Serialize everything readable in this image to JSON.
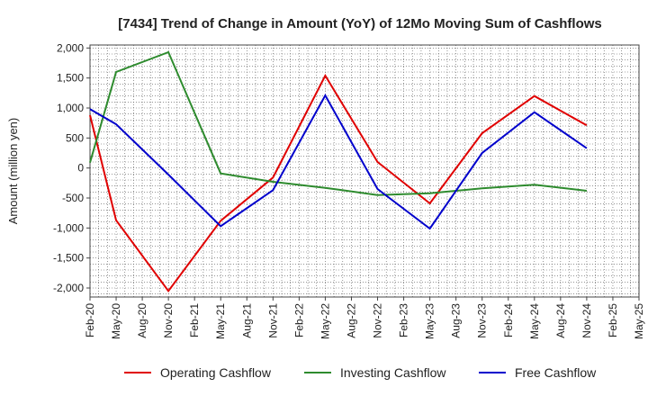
{
  "chart_data": {
    "type": "line",
    "title": "[7434]  Trend of Change in Amount (YoY) of 12Mo Moving Sum of Cashflows",
    "xlabel": "",
    "ylabel": "Amount (million yen)",
    "ylim": [
      -2150,
      2050
    ],
    "yticks": [
      2000,
      1500,
      1000,
      500,
      0,
      -500,
      -1000,
      -1500,
      -2000
    ],
    "ytick_labels": [
      "2,000",
      "1,500",
      "1,000",
      "500",
      "0",
      "-500",
      "-1,000",
      "-1,500",
      "-2,000"
    ],
    "categories": [
      "Feb-20",
      "May-20",
      "Aug-20",
      "Nov-20",
      "Feb-21",
      "May-21",
      "Aug-21",
      "Nov-21",
      "Feb-22",
      "May-22",
      "Aug-22",
      "Nov-22",
      "Feb-23",
      "May-23",
      "Aug-23",
      "Nov-23",
      "Feb-24",
      "May-24",
      "Aug-24",
      "Nov-24",
      "Feb-25",
      "May-25"
    ],
    "grid": true,
    "legend_position": "bottom",
    "series": [
      {
        "name": "Operating Cashflow",
        "color": "#e00000",
        "values": [
          880,
          -870,
          null,
          -2050,
          null,
          -880,
          null,
          -160,
          null,
          1540,
          null,
          100,
          null,
          -590,
          null,
          580,
          null,
          1200,
          null,
          710,
          null,
          null
        ]
      },
      {
        "name": "Investing Cashflow",
        "color": "#2e8b2e",
        "values": [
          90,
          1600,
          null,
          1930,
          null,
          -90,
          null,
          -230,
          null,
          -330,
          null,
          -450,
          null,
          -420,
          null,
          -340,
          null,
          -280,
          null,
          -380,
          null,
          null
        ]
      },
      {
        "name": "Free Cashflow",
        "color": "#0000cc",
        "values": [
          980,
          730,
          null,
          -110,
          null,
          -970,
          null,
          -370,
          null,
          1210,
          null,
          -350,
          null,
          -1010,
          null,
          250,
          null,
          930,
          null,
          330,
          null,
          null
        ]
      }
    ]
  }
}
